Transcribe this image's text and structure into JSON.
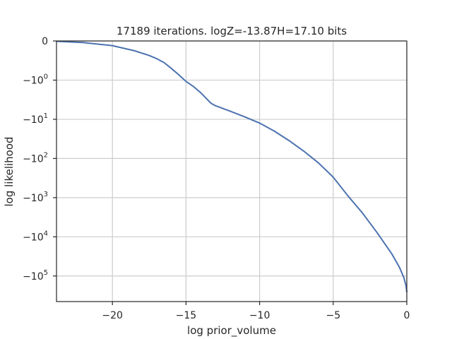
{
  "chart_data": {
    "type": "line",
    "title": "17189 iterations. logZ=-13.87H=17.10 bits",
    "xlabel": "log prior_volume",
    "ylabel": "log likelihood",
    "xlim": [
      -23.8,
      0
    ],
    "x_ticks": [
      {
        "value": -20,
        "label": "−20"
      },
      {
        "value": -15,
        "label": "−15"
      },
      {
        "value": -10,
        "label": "−10"
      },
      {
        "value": -5,
        "label": "−5"
      },
      {
        "value": 0,
        "label": "0"
      }
    ],
    "y_scale": "symlog",
    "y_linthresh": 1,
    "ylim": [
      0,
      -450000
    ],
    "y_ticks": [
      {
        "value": 0,
        "base": "0",
        "exp": ""
      },
      {
        "value": -1,
        "base": "−10",
        "exp": "0"
      },
      {
        "value": -10,
        "base": "−10",
        "exp": "1"
      },
      {
        "value": -100,
        "base": "−10",
        "exp": "2"
      },
      {
        "value": -1000,
        "base": "−10",
        "exp": "3"
      },
      {
        "value": -10000,
        "base": "−10",
        "exp": "4"
      },
      {
        "value": -100000,
        "base": "−10",
        "exp": "5"
      }
    ],
    "grid": true,
    "series": [
      {
        "color": "#4c72b0",
        "x": [
          -23.8,
          -22.0,
          -20.0,
          -18.5,
          -17.5,
          -17.0,
          -16.5,
          -16.0,
          -15.5,
          -15.0,
          -14.5,
          -14.0,
          -13.6,
          -13.3,
          -13.0,
          -12.0,
          -11.0,
          -10.0,
          -9.0,
          -8.0,
          -7.0,
          -6.0,
          -5.0,
          -4.0,
          -3.0,
          -2.0,
          -1.0,
          -0.5,
          -0.2,
          -0.05,
          0.0
        ],
        "y": [
          -0.01,
          -0.04,
          -0.12,
          -0.25,
          -0.37,
          -0.45,
          -0.55,
          -0.7,
          -0.86,
          -1.08,
          -1.45,
          -2.1,
          -3.0,
          -3.9,
          -4.5,
          -6.2,
          -8.7,
          -12.5,
          -20,
          -35,
          -65,
          -130,
          -300,
          -900,
          -2500,
          -8000,
          -28000,
          -60000,
          -110000,
          -180000,
          -260000
        ]
      }
    ]
  }
}
